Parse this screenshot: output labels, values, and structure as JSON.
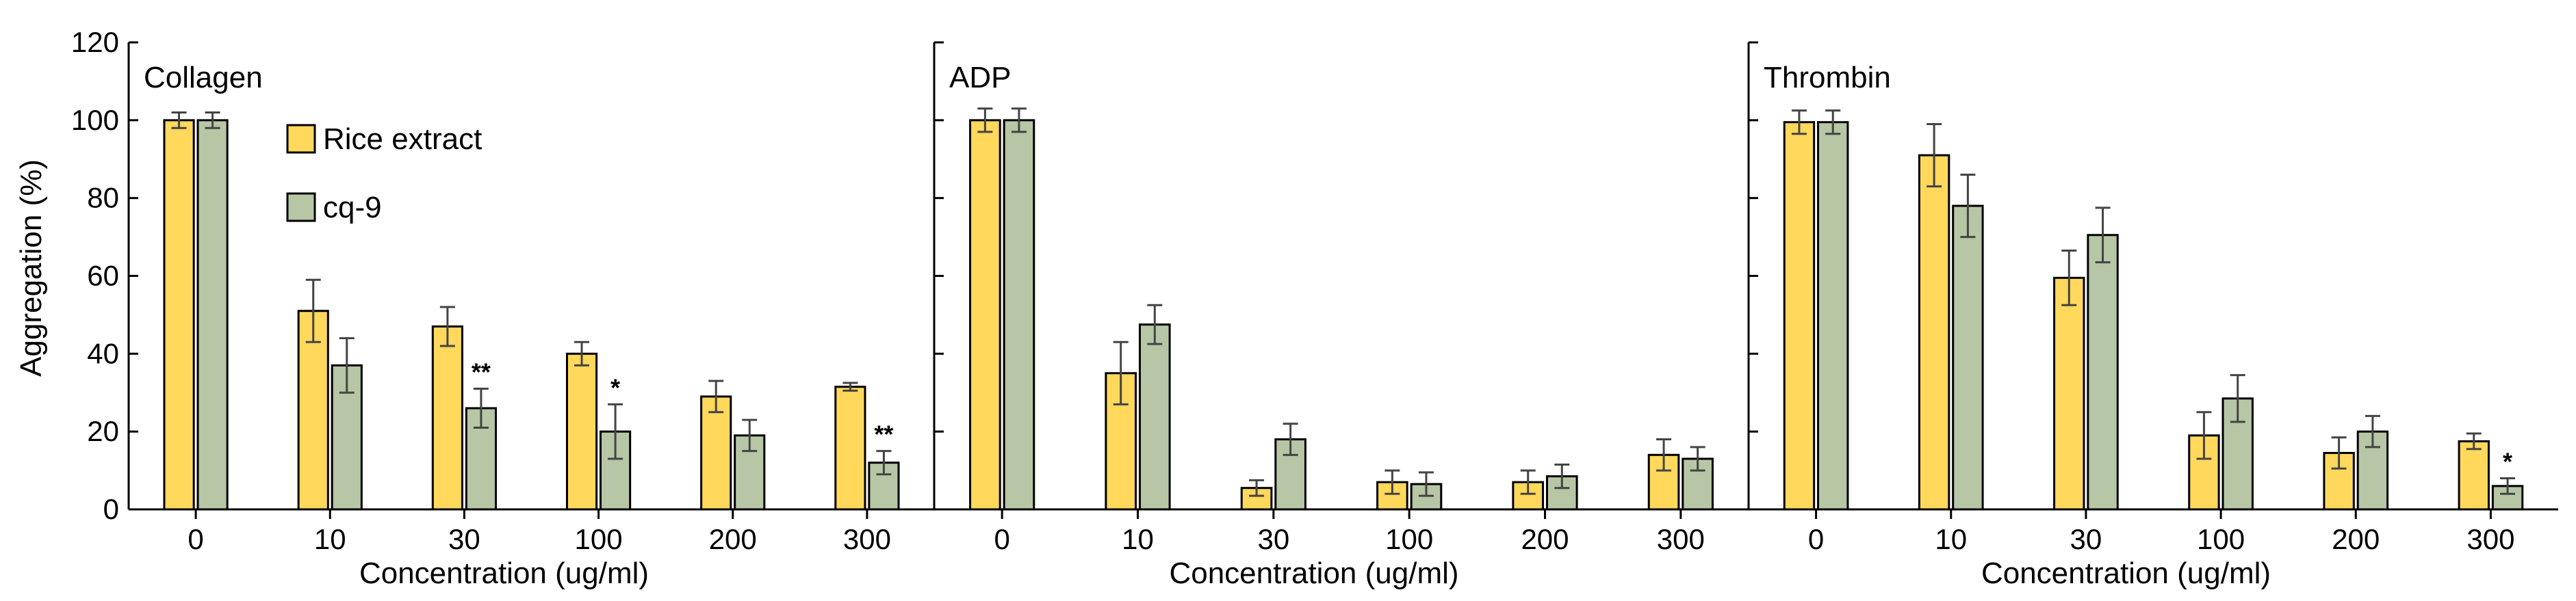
{
  "chart_data": {
    "type": "bar",
    "ylabel": "Aggregation (%)",
    "xlabel": "Concentration (ug/ml)",
    "ylim": [
      0,
      120
    ],
    "yticks": [
      0,
      20,
      40,
      60,
      80,
      100,
      120
    ],
    "categories": [
      "0",
      "10",
      "30",
      "100",
      "200",
      "300"
    ],
    "legend": {
      "position": "top-left",
      "items": [
        {
          "name": "Rice extract",
          "color": "#FFD85C"
        },
        {
          "name": "cq-9",
          "color": "#B7C6A5"
        }
      ]
    },
    "panels": [
      {
        "title": "Collagen",
        "series": [
          {
            "name": "Rice extract",
            "values": [
              100,
              51,
              47,
              40,
              29,
              31.5
            ],
            "errors": [
              2,
              8,
              5,
              3,
              4,
              1
            ]
          },
          {
            "name": "cq-9",
            "values": [
              100,
              37,
              26,
              20,
              19,
              12
            ],
            "errors": [
              2,
              7,
              5,
              7,
              4,
              3
            ]
          }
        ],
        "significance": [
          {
            "category": "30",
            "series": "cq-9",
            "label": "**"
          },
          {
            "category": "100",
            "series": "cq-9",
            "label": "*"
          },
          {
            "category": "300",
            "series": "cq-9",
            "label": "**"
          }
        ]
      },
      {
        "title": "ADP",
        "series": [
          {
            "name": "Rice extract",
            "values": [
              100,
              35,
              5.5,
              7,
              7,
              14
            ],
            "errors": [
              3,
              8,
              2,
              3,
              3,
              4
            ]
          },
          {
            "name": "cq-9",
            "values": [
              100,
              47.5,
              18,
              6.5,
              8.5,
              13
            ],
            "errors": [
              3,
              5,
              4,
              3,
              3,
              3
            ]
          }
        ],
        "significance": []
      },
      {
        "title": "Thrombin",
        "series": [
          {
            "name": "Rice extract",
            "values": [
              99.5,
              91,
              59.5,
              19,
              14.5,
              17.5
            ],
            "errors": [
              3,
              8,
              7,
              6,
              4,
              2
            ]
          },
          {
            "name": "cq-9",
            "values": [
              99.5,
              78,
              70.5,
              28.5,
              20,
              6
            ],
            "errors": [
              3,
              8,
              7,
              6,
              4,
              2
            ]
          }
        ],
        "significance": [
          {
            "category": "300",
            "series": "cq-9",
            "label": "*"
          }
        ]
      }
    ]
  }
}
